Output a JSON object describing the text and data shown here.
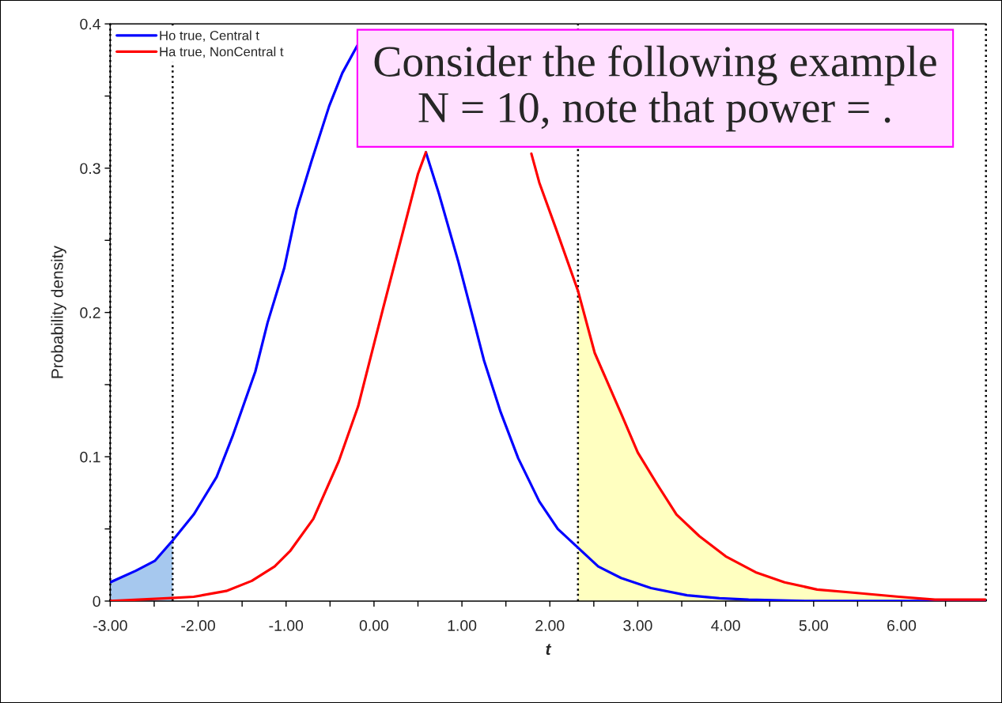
{
  "chart_data": {
    "type": "line",
    "xlabel": "t",
    "ylabel": "Probability density",
    "annotations": [
      "Consider the following example\nN = 10, note that power = ."
    ],
    "xlim": [
      -3,
      6.96
    ],
    "ylim": [
      0,
      0.4
    ],
    "xticks": [
      {
        "value": -3,
        "label": "-3.00"
      },
      {
        "value": -2.5,
        "label": null
      },
      {
        "value": -2,
        "label": "-2.00"
      },
      {
        "value": -1.5,
        "label": null
      },
      {
        "value": -1,
        "label": "-1.00"
      },
      {
        "value": -0.5,
        "label": null
      },
      {
        "value": 0,
        "label": "0.00"
      },
      {
        "value": 0.5,
        "label": null
      },
      {
        "value": 1,
        "label": "1.00"
      },
      {
        "value": 1.5,
        "label": null
      },
      {
        "value": 2,
        "label": "2.00"
      },
      {
        "value": 2.5,
        "label": null
      },
      {
        "value": 3,
        "label": "3.00"
      },
      {
        "value": 3.5,
        "label": null
      },
      {
        "value": 4,
        "label": "4.00"
      },
      {
        "value": 4.5,
        "label": null
      },
      {
        "value": 5,
        "label": "5.00"
      },
      {
        "value": 5.5,
        "label": null
      },
      {
        "value": 6,
        "label": "6.00"
      },
      {
        "value": 6.5,
        "label": null
      }
    ],
    "yticks": [
      0,
      {
        "value": 0.05,
        "label": null
      },
      0.1,
      {
        "value": 0.15,
        "label": null
      },
      0.2,
      {
        "value": 0.25,
        "label": null
      },
      0.3,
      {
        "value": 0.35,
        "label": null
      },
      0.4
    ],
    "legend": "top left",
    "grid": false,
    "line_style": "solid",
    "marker": "none",
    "ref_lines": [
      {
        "axis": "x",
        "value": -3.0,
        "color": "#000000",
        "line_style": "dotted"
      },
      {
        "axis": "x",
        "value": -2.29,
        "color": "#000000",
        "line_style": "dotted"
      },
      {
        "axis": "x",
        "value": 2.32,
        "color": "#000000",
        "line_style": "dotted"
      },
      {
        "axis": "x",
        "value": 6.96,
        "color": "#000000",
        "line_style": "dotted"
      }
    ],
    "series": [
      {
        "type": "area",
        "color": "#a6c8ee",
        "x": [
          -3.0,
          -2.71,
          -2.49,
          -2.29
        ],
        "values": [
          0.013,
          0.021,
          0.028,
          0.042
        ]
      },
      {
        "type": "area",
        "color": "#ffffc0",
        "x": [
          2.32,
          2.51,
          2.81,
          3.0,
          3.22,
          3.44,
          3.7,
          4.0,
          4.34,
          4.67,
          5.04,
          5.42,
          5.97,
          6.38,
          6.96
        ],
        "values": [
          0.215,
          0.172,
          0.13,
          0.103,
          0.081,
          0.06,
          0.045,
          0.031,
          0.02,
          0.013,
          0.008,
          0.006,
          0.003,
          0.001,
          0.001
        ]
      },
      {
        "name": "Ho true, Central t",
        "color": "#0000ff",
        "x": [
          -3.0,
          -2.71,
          -2.49,
          -2.29,
          -2.05,
          -1.79,
          -1.61,
          -1.35,
          -1.21,
          -1.02,
          -0.88,
          -0.71,
          -0.51,
          -0.36,
          -0.19,
          0.2,
          0.59,
          0.74,
          0.96,
          1.14,
          1.25,
          1.44,
          1.64,
          1.88,
          2.09,
          2.32,
          2.55,
          2.81,
          3.15,
          3.56,
          3.93,
          4.26,
          4.97,
          5.93,
          6.96
        ],
        "values": [
          0.013,
          0.021,
          0.028,
          0.042,
          0.06,
          0.086,
          0.114,
          0.159,
          0.193,
          0.231,
          0.271,
          0.305,
          0.343,
          0.366,
          0.385,
          null,
          0.311,
          0.282,
          0.235,
          0.193,
          0.167,
          0.131,
          0.099,
          0.069,
          0.05,
          0.037,
          0.024,
          0.016,
          0.009,
          0.004,
          0.002,
          0.001,
          0.0,
          0.0,
          0.0
        ]
      },
      {
        "name": "Ha true, NonCentral t",
        "color": "#ff0000",
        "x": [
          -3.0,
          -2.35,
          -2.05,
          -1.68,
          -1.39,
          -1.13,
          -0.95,
          -0.69,
          -0.4,
          -0.18,
          -0.03,
          0.1,
          0.3,
          0.5,
          0.59,
          1.2,
          1.79,
          1.88,
          2.07,
          2.32,
          2.51,
          2.81,
          3.0,
          3.22,
          3.44,
          3.7,
          4.0,
          4.34,
          4.67,
          5.04,
          5.42,
          5.97,
          6.38,
          6.96
        ],
        "values": [
          0.0,
          0.002,
          0.003,
          0.007,
          0.014,
          0.024,
          0.035,
          0.057,
          0.097,
          0.135,
          0.171,
          0.202,
          0.249,
          0.296,
          0.311,
          null,
          0.31,
          0.29,
          0.258,
          0.215,
          0.172,
          0.13,
          0.103,
          0.081,
          0.06,
          0.045,
          0.031,
          0.02,
          0.013,
          0.008,
          0.006,
          0.003,
          0.001,
          0.001
        ]
      }
    ]
  }
}
